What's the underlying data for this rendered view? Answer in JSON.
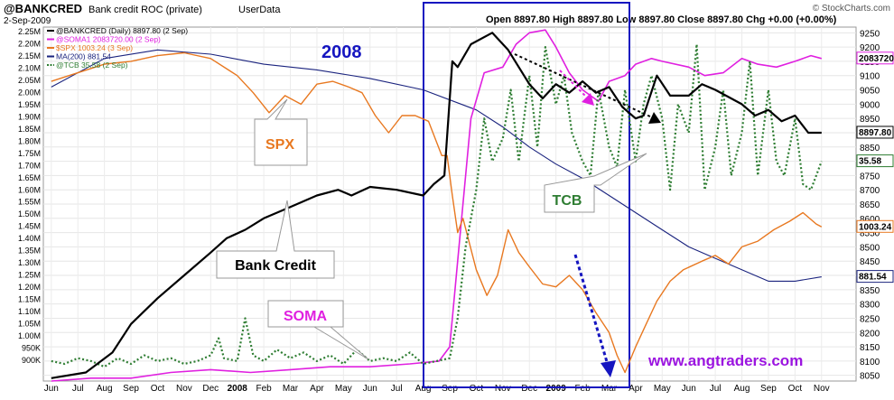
{
  "header": {
    "symbol": "@BANKCRED",
    "name": "Bank credit ROC (private)",
    "source": "UserData",
    "date": "2-Sep-2009",
    "ohlc_text": "Open 8897.80  High 8897.80  Low 8897.80  Close 8897.80  Chg +0.00 (+0.00%)",
    "copyright": "© StockCharts.com"
  },
  "legend": [
    {
      "text": "@BANKCRED (Daily) 8897.80 (2 Sep)",
      "color": "#000000",
      "dash": false
    },
    {
      "text": "@SOMA1 2083720.00 (2 Sep)",
      "color": "#e020e0",
      "dash": false
    },
    {
      "text": "$SPX 1003.24 (3 Sep)",
      "color": "#e87820",
      "dash": false
    },
    {
      "text": "MA(200) 881.54",
      "color": "#1a237e",
      "dash": false
    },
    {
      "text": "@TCB 35.58 (2 Sep)",
      "color": "#2e7d32",
      "dash": true
    }
  ],
  "annotations": {
    "year_label": "2008",
    "spx": "SPX",
    "tcb": "TCB",
    "bank_credit": "Bank Credit",
    "soma": "SOMA",
    "website": "www.angtraders.com"
  },
  "colors": {
    "bankcred": "#000000",
    "soma": "#e020e0",
    "spx": "#e87820",
    "ma": "#1a237e",
    "tcb": "#2e7d32",
    "box": "#1515c0",
    "website": "#9b14e0"
  },
  "chart_data": {
    "type": "line",
    "x_labels": [
      "Jun",
      "Jul",
      "Aug",
      "Sep",
      "Oct",
      "Nov",
      "Dec",
      "2008",
      "Feb",
      "Mar",
      "Apr",
      "May",
      "Jun",
      "Jul",
      "Aug",
      "Sep",
      "Oct",
      "Nov",
      "Dec",
      "2009",
      "Feb",
      "Mar",
      "Apr",
      "May",
      "Jun",
      "Jul",
      "Aug",
      "Sep",
      "Oct",
      "Nov"
    ],
    "left_axis_ticks": [
      "2.25M",
      "2.20M",
      "2.15M",
      "2.10M",
      "2.05M",
      "2.00M",
      "1.95M",
      "1.90M",
      "1.85M",
      "1.80M",
      "1.75M",
      "1.70M",
      "1.65M",
      "1.60M",
      "1.55M",
      "1.50M",
      "1.45M",
      "1.40M",
      "1.35M",
      "1.30M",
      "1.25M",
      "1.20M",
      "1.15M",
      "1.10M",
      "1.05M",
      "1.00M",
      "950K",
      "900K"
    ],
    "right_axis_ticks": [
      "9250",
      "9200",
      "9150",
      "9100",
      "9050",
      "9000",
      "8950",
      "8900",
      "8850",
      "8800",
      "8750",
      "8700",
      "8650",
      "8600",
      "8550",
      "8500",
      "8450",
      "8400",
      "8350",
      "8300",
      "8250",
      "8200",
      "8150",
      "8100",
      "8050"
    ],
    "right_labels": [
      {
        "text": "2083720",
        "series": "soma"
      },
      {
        "text": "8897.80",
        "series": "bankcred"
      },
      {
        "text": "35.58",
        "series": "tcb"
      },
      {
        "text": "1003.24",
        "series": "spx"
      },
      {
        "text": "881.54",
        "series": "ma"
      }
    ],
    "series": [
      {
        "name": "@BANKCRED",
        "key": "bankcred",
        "unit": "index",
        "points": [
          [
            0,
            8040
          ],
          [
            1.3,
            8060
          ],
          [
            2.3,
            8130
          ],
          [
            3,
            8230
          ],
          [
            4,
            8320
          ],
          [
            5,
            8400
          ],
          [
            6,
            8480
          ],
          [
            6.6,
            8530
          ],
          [
            7.3,
            8560
          ],
          [
            8,
            8600
          ],
          [
            9,
            8640
          ],
          [
            10,
            8680
          ],
          [
            10.8,
            8700
          ],
          [
            11.3,
            8680
          ],
          [
            12,
            8710
          ],
          [
            13,
            8700
          ],
          [
            14,
            8680
          ],
          [
            14.4,
            8720
          ],
          [
            14.8,
            8750
          ],
          [
            15.1,
            9150
          ],
          [
            15.3,
            9130
          ],
          [
            15.8,
            9210
          ],
          [
            16.6,
            9250
          ],
          [
            17.2,
            9190
          ],
          [
            18,
            9070
          ],
          [
            18.5,
            9020
          ],
          [
            19,
            9070
          ],
          [
            19.5,
            9040
          ],
          [
            20,
            9080
          ],
          [
            20.5,
            9040
          ],
          [
            21,
            9060
          ],
          [
            21.5,
            8990
          ],
          [
            22,
            8950
          ],
          [
            22.3,
            8960
          ],
          [
            22.8,
            9100
          ],
          [
            23.3,
            9030
          ],
          [
            24,
            9030
          ],
          [
            24.5,
            9070
          ],
          [
            25,
            9050
          ],
          [
            26,
            9000
          ],
          [
            26.5,
            8960
          ],
          [
            27,
            8980
          ],
          [
            27.5,
            8940
          ],
          [
            28,
            8960
          ],
          [
            28.5,
            8900
          ],
          [
            29,
            8900
          ]
        ]
      },
      {
        "name": "@SOMA1",
        "key": "soma",
        "unit": "value",
        "points": [
          [
            0,
            8030
          ],
          [
            1.5,
            8040
          ],
          [
            3,
            8040
          ],
          [
            4.5,
            8060
          ],
          [
            6,
            8070
          ],
          [
            7.5,
            8060
          ],
          [
            9,
            8070
          ],
          [
            10.5,
            8080
          ],
          [
            12,
            8080
          ],
          [
            13.5,
            8090
          ],
          [
            14.6,
            8100
          ],
          [
            15,
            8150
          ],
          [
            15.3,
            8450
          ],
          [
            15.8,
            8950
          ],
          [
            16.3,
            9110
          ],
          [
            17,
            9130
          ],
          [
            17.5,
            9210
          ],
          [
            18,
            9250
          ],
          [
            18.6,
            9260
          ],
          [
            19,
            9200
          ],
          [
            19.5,
            9110
          ],
          [
            20,
            9050
          ],
          [
            20.6,
            9010
          ],
          [
            21,
            9080
          ],
          [
            21.6,
            9100
          ],
          [
            22,
            9140
          ],
          [
            22.6,
            9160
          ],
          [
            23,
            9150
          ],
          [
            24,
            9130
          ],
          [
            24.6,
            9100
          ],
          [
            25.3,
            9110
          ],
          [
            26,
            9160
          ],
          [
            26.6,
            9140
          ],
          [
            27.3,
            9130
          ],
          [
            28,
            9150
          ],
          [
            28.6,
            9170
          ],
          [
            29,
            9160
          ]
        ]
      },
      {
        "name": "$SPX",
        "key": "spx",
        "unit": "price",
        "points": [
          [
            0,
            9080
          ],
          [
            1,
            9110
          ],
          [
            2,
            9140
          ],
          [
            3,
            9150
          ],
          [
            4,
            9170
          ],
          [
            5,
            9180
          ],
          [
            6,
            9160
          ],
          [
            7,
            9100
          ],
          [
            7.6,
            9040
          ],
          [
            8.2,
            8970
          ],
          [
            8.8,
            9030
          ],
          [
            9.4,
            9000
          ],
          [
            10,
            9070
          ],
          [
            10.6,
            9080
          ],
          [
            11.2,
            9060
          ],
          [
            11.7,
            9040
          ],
          [
            12.2,
            8960
          ],
          [
            12.7,
            8900
          ],
          [
            13.2,
            8960
          ],
          [
            13.7,
            8960
          ],
          [
            14.2,
            8940
          ],
          [
            14.7,
            8820
          ],
          [
            14.9,
            8820
          ],
          [
            15.1,
            8680
          ],
          [
            15.3,
            8550
          ],
          [
            15.5,
            8600
          ],
          [
            16,
            8420
          ],
          [
            16.4,
            8330
          ],
          [
            16.8,
            8400
          ],
          [
            17.2,
            8560
          ],
          [
            17.6,
            8480
          ],
          [
            18,
            8430
          ],
          [
            18.5,
            8370
          ],
          [
            19,
            8360
          ],
          [
            19.5,
            8400
          ],
          [
            20,
            8350
          ],
          [
            20.5,
            8270
          ],
          [
            21,
            8200
          ],
          [
            21.3,
            8120
          ],
          [
            21.6,
            8060
          ],
          [
            22,
            8150
          ],
          [
            22.4,
            8230
          ],
          [
            22.8,
            8310
          ],
          [
            23.3,
            8380
          ],
          [
            23.8,
            8420
          ],
          [
            24.5,
            8450
          ],
          [
            25,
            8470
          ],
          [
            25.5,
            8440
          ],
          [
            26,
            8500
          ],
          [
            26.6,
            8520
          ],
          [
            27.2,
            8560
          ],
          [
            27.8,
            8590
          ],
          [
            28.3,
            8620
          ],
          [
            28.8,
            8580
          ],
          [
            29,
            8570
          ]
        ]
      },
      {
        "name": "MA(200)",
        "key": "ma",
        "unit": "price",
        "points": [
          [
            0,
            9060
          ],
          [
            2,
            9160
          ],
          [
            4,
            9190
          ],
          [
            6,
            9175
          ],
          [
            8,
            9140
          ],
          [
            10,
            9120
          ],
          [
            12,
            9090
          ],
          [
            14,
            9050
          ],
          [
            16,
            8980
          ],
          [
            17,
            8920
          ],
          [
            18,
            8850
          ],
          [
            19,
            8790
          ],
          [
            20,
            8740
          ],
          [
            21,
            8680
          ],
          [
            22,
            8620
          ],
          [
            23,
            8560
          ],
          [
            24,
            8500
          ],
          [
            25,
            8460
          ],
          [
            26,
            8420
          ],
          [
            27,
            8380
          ],
          [
            28,
            8380
          ],
          [
            29,
            8395
          ]
        ]
      },
      {
        "name": "@TCB",
        "key": "tcb",
        "unit": "value",
        "points": [
          [
            0,
            8100
          ],
          [
            0.5,
            8090
          ],
          [
            1,
            8110
          ],
          [
            1.5,
            8100
          ],
          [
            2,
            8080
          ],
          [
            2.5,
            8110
          ],
          [
            3,
            8090
          ],
          [
            3.5,
            8120
          ],
          [
            4,
            8100
          ],
          [
            4.5,
            8110
          ],
          [
            5,
            8090
          ],
          [
            5.5,
            8100
          ],
          [
            6,
            8120
          ],
          [
            6.3,
            8180
          ],
          [
            6.5,
            8110
          ],
          [
            7,
            8100
          ],
          [
            7.3,
            8250
          ],
          [
            7.6,
            8120
          ],
          [
            8,
            8100
          ],
          [
            8.5,
            8140
          ],
          [
            9,
            8110
          ],
          [
            9.5,
            8130
          ],
          [
            10,
            8100
          ],
          [
            10.5,
            8120
          ],
          [
            11,
            8090
          ],
          [
            11.5,
            8140
          ],
          [
            12,
            8100
          ],
          [
            12.5,
            8110
          ],
          [
            13,
            8100
          ],
          [
            13.5,
            8130
          ],
          [
            14,
            8090
          ],
          [
            14.5,
            8100
          ],
          [
            15,
            8110
          ],
          [
            15.3,
            8250
          ],
          [
            15.6,
            8500
          ],
          [
            16,
            8700
          ],
          [
            16.3,
            8950
          ],
          [
            16.6,
            8800
          ],
          [
            17,
            8880
          ],
          [
            17.3,
            9050
          ],
          [
            17.6,
            8800
          ],
          [
            18,
            9100
          ],
          [
            18.3,
            8850
          ],
          [
            18.6,
            9200
          ],
          [
            19,
            9000
          ],
          [
            19.3,
            9100
          ],
          [
            19.6,
            8900
          ],
          [
            20,
            8800
          ],
          [
            20.3,
            8750
          ],
          [
            20.6,
            9050
          ],
          [
            21,
            8850
          ],
          [
            21.3,
            8780
          ],
          [
            21.6,
            9050
          ],
          [
            22,
            8800
          ],
          [
            22.3,
            9000
          ],
          [
            22.6,
            9100
          ],
          [
            23,
            8950
          ],
          [
            23.3,
            8700
          ],
          [
            23.6,
            9000
          ],
          [
            24,
            8900
          ],
          [
            24.3,
            9210
          ],
          [
            24.6,
            8700
          ],
          [
            25,
            8850
          ],
          [
            25.3,
            9050
          ],
          [
            25.6,
            8750
          ],
          [
            26,
            8900
          ],
          [
            26.3,
            9150
          ],
          [
            26.6,
            8750
          ],
          [
            27,
            9050
          ],
          [
            27.3,
            8800
          ],
          [
            27.6,
            8750
          ],
          [
            28,
            8950
          ],
          [
            28.3,
            8720
          ],
          [
            28.6,
            8700
          ],
          [
            29,
            8800
          ]
        ]
      }
    ],
    "y_range_right": [
      8030,
      9270
    ],
    "x_range": [
      -0.3,
      30.3
    ],
    "grid": true
  }
}
